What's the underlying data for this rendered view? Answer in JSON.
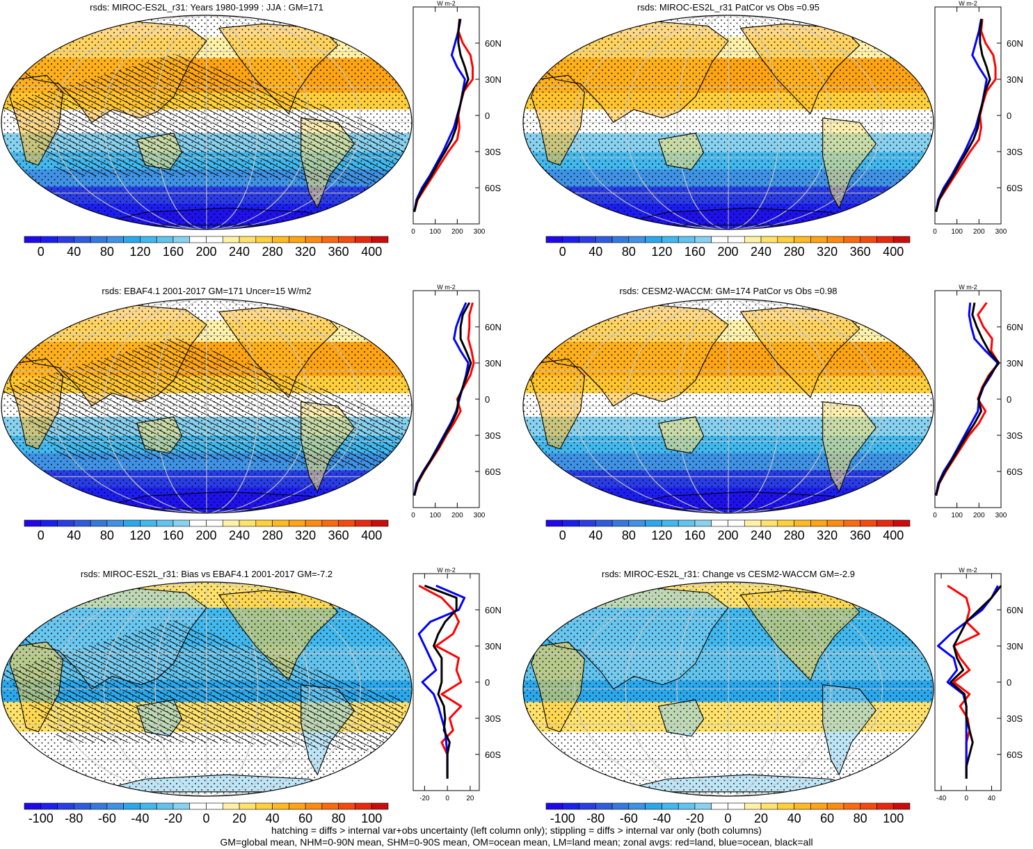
{
  "chart_data": [
    {
      "type": "heatmap",
      "title": "rsds: MIROC-ES2L_r31: Years 1980-1999 : JJA : GM=171",
      "colorbar": {
        "min": -20,
        "max": 420,
        "step": 20,
        "labels": [
          "0",
          "40",
          "80",
          "120",
          "160",
          "200",
          "240",
          "280",
          "320",
          "360",
          "400"
        ],
        "label_values": [
          0,
          40,
          80,
          120,
          160,
          200,
          240,
          280,
          320,
          360,
          400
        ],
        "palette": "abs"
      },
      "profile": {
        "unit": "W m-2",
        "xlim": [
          0,
          300
        ],
        "xticks": [
          "0",
          "100",
          "200",
          "300"
        ],
        "xtick_values": [
          0,
          100,
          200,
          300
        ],
        "yticks": [
          "60N",
          "30N",
          "0",
          "30S",
          "60S"
        ],
        "ytick_values": [
          60,
          30,
          0,
          -30,
          -60
        ],
        "lat": [
          80,
          70,
          60,
          50,
          40,
          30,
          20,
          10,
          0,
          -10,
          -20,
          -30,
          -40,
          -50,
          -60,
          -70,
          -80
        ],
        "series": [
          {
            "color": "#ff0000",
            "values": [
              210,
              205,
              225,
              260,
              270,
              270,
              230,
              215,
              205,
              210,
              200,
              160,
              125,
              90,
              55,
              20,
              5
            ]
          },
          {
            "color": "#0000ff",
            "values": [
              215,
              205,
              190,
              175,
              200,
              235,
              225,
              215,
              200,
              185,
              160,
              135,
              105,
              75,
              40,
              15,
              5
            ]
          },
          {
            "color": "#000000",
            "values": [
              212,
              205,
              205,
              215,
              235,
              250,
              228,
              215,
              202,
              195,
              175,
              145,
              112,
              82,
              48,
              18,
              5
            ]
          }
        ]
      }
    },
    {
      "type": "heatmap",
      "title": "rsds: MIROC-ES2L_r31 PatCor vs Obs =0.95",
      "colorbar": {
        "min": -20,
        "max": 420,
        "step": 20,
        "labels": [
          "0",
          "40",
          "80",
          "120",
          "160",
          "200",
          "240",
          "280",
          "320",
          "360",
          "400"
        ],
        "label_values": [
          0,
          40,
          80,
          120,
          160,
          200,
          240,
          280,
          320,
          360,
          400
        ],
        "palette": "abs"
      },
      "profile": {
        "unit": "W m-2",
        "xlim": [
          0,
          300
        ],
        "xticks": [
          "0",
          "100",
          "200",
          "300"
        ],
        "xtick_values": [
          0,
          100,
          200,
          300
        ],
        "yticks": [
          "60N",
          "30N",
          "0",
          "30S",
          "60S"
        ],
        "ytick_values": [
          60,
          30,
          0,
          -30,
          -60
        ],
        "lat": [
          80,
          70,
          60,
          50,
          40,
          30,
          20,
          10,
          0,
          -10,
          -20,
          -30,
          -40,
          -50,
          -60,
          -70,
          -80
        ],
        "series": [
          {
            "color": "#ff0000",
            "values": [
              215,
              210,
              230,
              265,
              275,
              275,
              235,
              218,
              205,
              210,
              200,
              160,
              125,
              90,
              55,
              20,
              5
            ]
          },
          {
            "color": "#0000ff",
            "values": [
              210,
              200,
              185,
              170,
              200,
              235,
              225,
              215,
              200,
              185,
              160,
              135,
              105,
              75,
              40,
              15,
              5
            ]
          },
          {
            "color": "#000000",
            "values": [
              212,
              205,
              205,
              215,
              235,
              250,
              228,
              215,
              202,
              195,
              175,
              145,
              112,
              82,
              48,
              18,
              5
            ]
          }
        ]
      }
    },
    {
      "type": "heatmap",
      "title": "rsds: EBAF4.1 2001-2017 GM=171 Uncer=15 W/m2",
      "colorbar": {
        "min": -20,
        "max": 420,
        "step": 20,
        "labels": [
          "0",
          "40",
          "80",
          "120",
          "160",
          "200",
          "240",
          "280",
          "320",
          "360",
          "400"
        ],
        "label_values": [
          0,
          40,
          80,
          120,
          160,
          200,
          240,
          280,
          320,
          360,
          400
        ],
        "palette": "abs"
      },
      "profile": {
        "unit": "W m-2",
        "xlim": [
          0,
          300
        ],
        "xticks": [
          "0",
          "100",
          "200",
          "300"
        ],
        "xtick_values": [
          0,
          100,
          200,
          300
        ],
        "yticks": [
          "60N",
          "30N",
          "0",
          "30S",
          "60S"
        ],
        "ytick_values": [
          60,
          30,
          0,
          -30,
          -60
        ],
        "lat": [
          80,
          70,
          60,
          50,
          40,
          30,
          20,
          10,
          0,
          -10,
          -20,
          -30,
          -40,
          -50,
          -60,
          -70,
          -80
        ],
        "series": [
          {
            "color": "#ff0000",
            "values": [
              270,
              255,
              255,
              250,
              265,
              275,
              260,
              230,
              200,
              215,
              185,
              150,
              120,
              85,
              50,
              20,
              5
            ]
          },
          {
            "color": "#0000ff",
            "values": [
              240,
              215,
              195,
              185,
              215,
              250,
              240,
              225,
              210,
              195,
              170,
              140,
              110,
              80,
              45,
              15,
              5
            ]
          },
          {
            "color": "#000000",
            "values": [
              255,
              225,
              215,
              215,
              240,
              262,
              245,
              225,
              205,
              200,
              175,
              145,
              115,
              82,
              48,
              18,
              5
            ]
          }
        ]
      }
    },
    {
      "type": "heatmap",
      "title": "rsds: CESM2-WACCM: GM=174 PatCor vs Obs =0.98",
      "colorbar": {
        "min": -20,
        "max": 420,
        "step": 20,
        "labels": [
          "0",
          "40",
          "80",
          "120",
          "160",
          "200",
          "240",
          "280",
          "320",
          "360",
          "400"
        ],
        "label_values": [
          0,
          40,
          80,
          120,
          160,
          200,
          240,
          280,
          320,
          360,
          400
        ],
        "palette": "abs"
      },
      "profile": {
        "unit": "W m-2",
        "xlim": [
          0,
          300
        ],
        "xticks": [
          "0",
          "100",
          "200",
          "300"
        ],
        "xtick_values": [
          0,
          100,
          200,
          300
        ],
        "yticks": [
          "60N",
          "30N",
          "0",
          "30S",
          "60S"
        ],
        "ytick_values": [
          60,
          30,
          0,
          -30,
          -60
        ],
        "lat": [
          80,
          70,
          60,
          50,
          40,
          30,
          20,
          10,
          0,
          -10,
          -20,
          -30,
          -40,
          -50,
          -60,
          -70,
          -80
        ],
        "series": [
          {
            "color": "#ff0000",
            "values": [
              235,
              195,
              220,
              260,
              255,
              290,
              245,
              215,
              195,
              230,
              200,
              155,
              120,
              85,
              50,
              20,
              5
            ]
          },
          {
            "color": "#0000ff",
            "values": [
              160,
              155,
              165,
              180,
              230,
              285,
              255,
              220,
              200,
              195,
              165,
              135,
              105,
              75,
              40,
              15,
              5
            ]
          },
          {
            "color": "#000000",
            "values": [
              180,
              170,
              190,
              215,
              245,
              290,
              250,
              218,
              198,
              210,
              180,
              145,
              112,
              80,
              46,
              18,
              5
            ]
          }
        ]
      }
    },
    {
      "type": "heatmap",
      "title": "rsds: MIROC-ES2L_r31: Bias vs EBAF4.1 2001-2017 GM=-7.2",
      "colorbar": {
        "min": -110,
        "max": 110,
        "step": 10,
        "labels": [
          "-100",
          "-80",
          "-60",
          "-40",
          "-20",
          "0",
          "20",
          "40",
          "60",
          "80",
          "100"
        ],
        "label_values": [
          -100,
          -80,
          -60,
          -40,
          -20,
          0,
          20,
          40,
          60,
          80,
          100
        ],
        "palette": "diff"
      },
      "profile": {
        "unit": "W m-2",
        "xlim": [
          -30,
          28
        ],
        "xticks": [
          "-20",
          "0",
          "20"
        ],
        "xtick_values": [
          -20,
          0,
          20
        ],
        "yticks": [
          "60N",
          "30N",
          "0",
          "30S",
          "60S"
        ],
        "ytick_values": [
          60,
          30,
          0,
          -30,
          -60
        ],
        "lat": [
          80,
          70,
          60,
          50,
          40,
          30,
          20,
          10,
          0,
          -10,
          -20,
          -30,
          -40,
          -50,
          -60,
          -70,
          -80
        ],
        "series": [
          {
            "color": "#ff0000",
            "values": [
              -25,
              -5,
              5,
              10,
              5,
              -10,
              10,
              8,
              12,
              -5,
              12,
              2,
              5,
              -5,
              0,
              0,
              0
            ]
          },
          {
            "color": "#0000ff",
            "values": [
              -10,
              15,
              10,
              -15,
              -25,
              -20,
              -15,
              -10,
              -22,
              -12,
              -8,
              -5,
              -2,
              -1,
              0,
              0,
              0
            ]
          },
          {
            "color": "#000000",
            "values": [
              -20,
              8,
              8,
              -2,
              -8,
              -12,
              -5,
              -5,
              -5,
              -8,
              -3,
              -2,
              -3,
              2,
              0,
              0,
              0
            ]
          }
        ]
      }
    },
    {
      "type": "heatmap",
      "title": "rsds: MIROC-ES2L_r31: Change vs CESM2-WACCM GM=-2.9",
      "colorbar": {
        "min": -110,
        "max": 110,
        "step": 10,
        "labels": [
          "-100",
          "-80",
          "-60",
          "-40",
          "-20",
          "0",
          "20",
          "40",
          "60",
          "80",
          "100"
        ],
        "label_values": [
          -100,
          -80,
          -60,
          -40,
          -20,
          0,
          20,
          40,
          60,
          80,
          100
        ],
        "palette": "diff"
      },
      "profile": {
        "unit": "W m-2",
        "xlim": [
          -50,
          55
        ],
        "xticks": [
          "-40",
          "0",
          "40"
        ],
        "xtick_values": [
          -40,
          0,
          40
        ],
        "yticks": [
          "60N",
          "30N",
          "0",
          "30S",
          "60S"
        ],
        "ytick_values": [
          60,
          30,
          0,
          -30,
          -60
        ],
        "lat": [
          80,
          70,
          60,
          50,
          40,
          30,
          20,
          10,
          0,
          -10,
          -20,
          -30,
          -40,
          -50,
          -60,
          -70,
          -80
        ],
        "series": [
          {
            "color": "#ff0000",
            "values": [
              -30,
              0,
              5,
              0,
              20,
              -20,
              -10,
              5,
              -20,
              5,
              -10,
              2,
              5,
              0,
              0,
              0,
              0
            ]
          },
          {
            "color": "#0000ff",
            "values": [
              50,
              40,
              25,
              0,
              -25,
              -45,
              -20,
              -15,
              -30,
              -5,
              0,
              0,
              0,
              0,
              0,
              0,
              0
            ]
          },
          {
            "color": "#000000",
            "values": [
              55,
              40,
              20,
              0,
              -10,
              -20,
              -15,
              -5,
              -25,
              -3,
              0,
              0,
              5,
              10,
              5,
              0,
              0
            ]
          }
        ]
      }
    }
  ],
  "footer": {
    "line1": "hatching = diffs > internal var+obs uncertainty (left column only); stippling = diffs > internal var only (both columns)",
    "line2": "GM=global mean, NHM=0-90N mean, SHM=0-90S mean, OM=ocean mean, LM=land mean; zonal avgs: red=land, blue=ocean, black=all"
  }
}
